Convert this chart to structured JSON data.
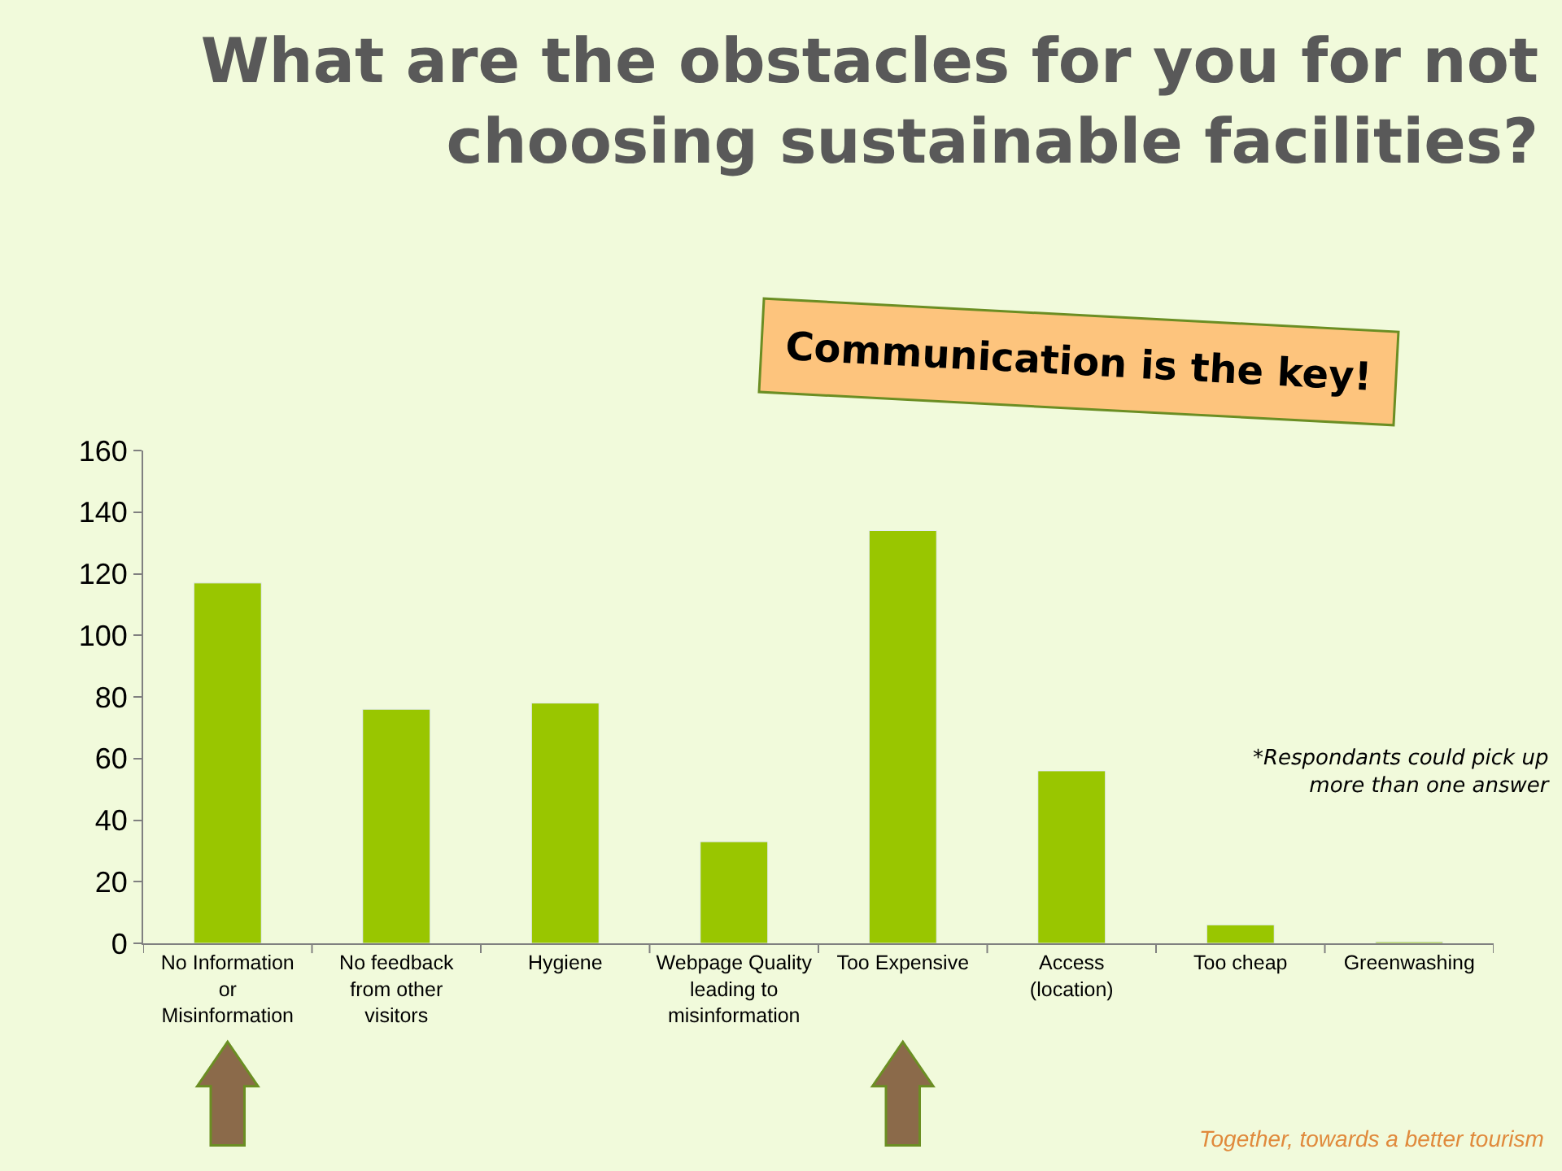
{
  "chart_data": {
    "type": "bar",
    "title": "What are the obstacles for you for not choosing sustainable facilities?",
    "categories": [
      "No Information or Misinformation",
      "No feedback from other visitors",
      "Hygiene",
      "Webpage Quality leading to misinformation",
      "Too Expensive",
      "Access (location)",
      "Too cheap",
      "Greenwashing"
    ],
    "values": [
      117,
      76,
      78,
      33,
      134,
      56,
      6,
      0.5
    ],
    "color": "#99c600",
    "ylim": [
      0,
      160
    ],
    "yticks": [
      0,
      20,
      40,
      60,
      80,
      100,
      120,
      140,
      160
    ],
    "grid": false,
    "annotations": [
      "Communication is the key!",
      "*Respondants could pick up more than one answer",
      "Together, towards a better tourism"
    ]
  }
}
